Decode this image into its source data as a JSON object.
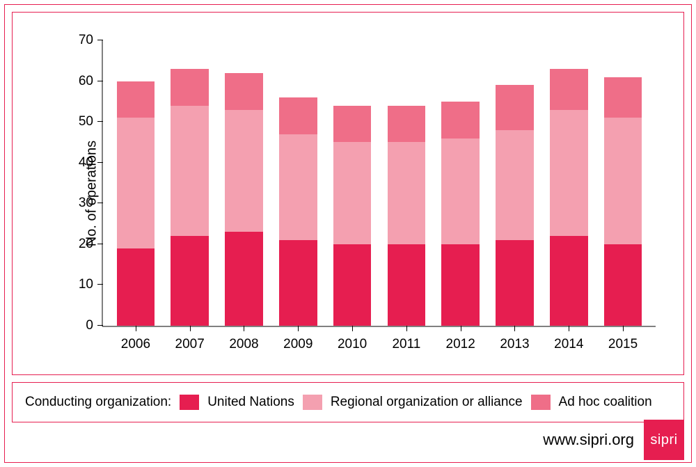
{
  "chart": {
    "type": "stacked-bar",
    "ylabel": "No. of operations",
    "label_fontsize": 20,
    "ylim": [
      0,
      70
    ],
    "ytick_step": 10,
    "yticks": [
      0,
      10,
      20,
      30,
      40,
      50,
      60,
      70
    ],
    "categories": [
      "2006",
      "2007",
      "2008",
      "2009",
      "2010",
      "2011",
      "2012",
      "2013",
      "2014",
      "2015"
    ],
    "series": [
      {
        "key": "un",
        "label": "United Nations",
        "color": "#e61e50"
      },
      {
        "key": "regional",
        "label": "Regional organization or alliance",
        "color": "#f4a0b0"
      },
      {
        "key": "adhoc",
        "label": "Ad hoc coalition",
        "color": "#ef6e88"
      }
    ],
    "data": {
      "un": [
        19,
        22,
        23,
        21,
        20,
        20,
        20,
        21,
        22,
        20
      ],
      "regional": [
        32,
        32,
        30,
        26,
        25,
        25,
        26,
        27,
        31,
        31
      ],
      "adhoc": [
        9,
        9,
        9,
        9,
        9,
        9,
        9,
        11,
        10,
        10
      ]
    },
    "background_color": "#ffffff",
    "axis_color": "#000000",
    "border_color": "#e61e50",
    "bar_width": 0.7,
    "tick_fontsize": 19
  },
  "legend": {
    "title": "Conducting organization:",
    "items": [
      {
        "label": "United Nations",
        "color": "#e61e50"
      },
      {
        "label": "Regional organization or alliance",
        "color": "#f4a0b0"
      },
      {
        "label": "Ad hoc coalition",
        "color": "#ef6e88"
      }
    ]
  },
  "footer": {
    "url": "www.sipri.org",
    "logo_text": "sipri",
    "logo_bg": "#e61e50",
    "logo_fg": "#ffffff"
  }
}
